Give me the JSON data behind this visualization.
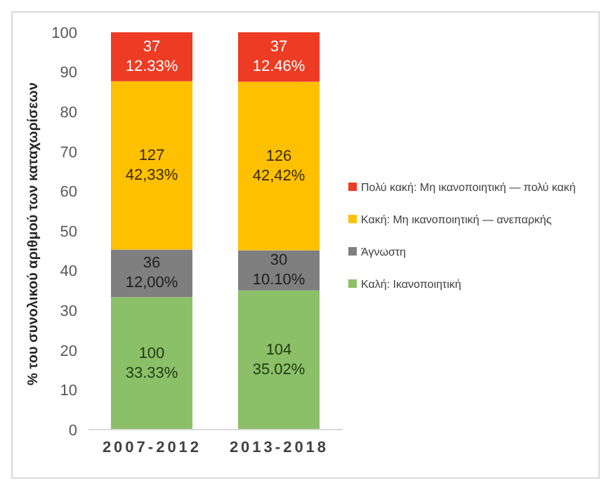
{
  "chart_data": {
    "type": "bar",
    "stacked": true,
    "categories": [
      "2007-2012",
      "2013-2018"
    ],
    "ylabel": "% του συνολικού αριθμού των καταχωρίσεων",
    "ylim": [
      0,
      100
    ],
    "yticks": [
      0,
      10,
      20,
      30,
      40,
      50,
      60,
      70,
      80,
      90,
      100
    ],
    "grid": false,
    "legend": "right",
    "series": [
      {
        "name": "Καλή: Ικανοποιητική",
        "color": "#8cc068",
        "values": [
          33.33,
          35.02
        ],
        "value_labels": [
          "100\n33.33%",
          "104\n35.02%"
        ]
      },
      {
        "name": "Άγνωστη",
        "color": "#7f7f7f",
        "values": [
          12.0,
          10.1
        ],
        "value_labels": [
          "36\n12,00%",
          "30\n10.10%"
        ]
      },
      {
        "name": "Κακή: Μη ικανοποιητική — ανεπαρκής",
        "color": "#ffc000",
        "values": [
          42.33,
          42.42
        ],
        "value_labels": [
          "127\n42,33%",
          "126\n42,42%"
        ]
      },
      {
        "name": "Πολύ κακή: Μη ικανοποιητική — πολύ κακή",
        "color": "#ee3b24",
        "values": [
          12.33,
          12.46
        ],
        "value_labels": [
          "37\n12.33%",
          "37\n12.46%"
        ]
      }
    ]
  }
}
